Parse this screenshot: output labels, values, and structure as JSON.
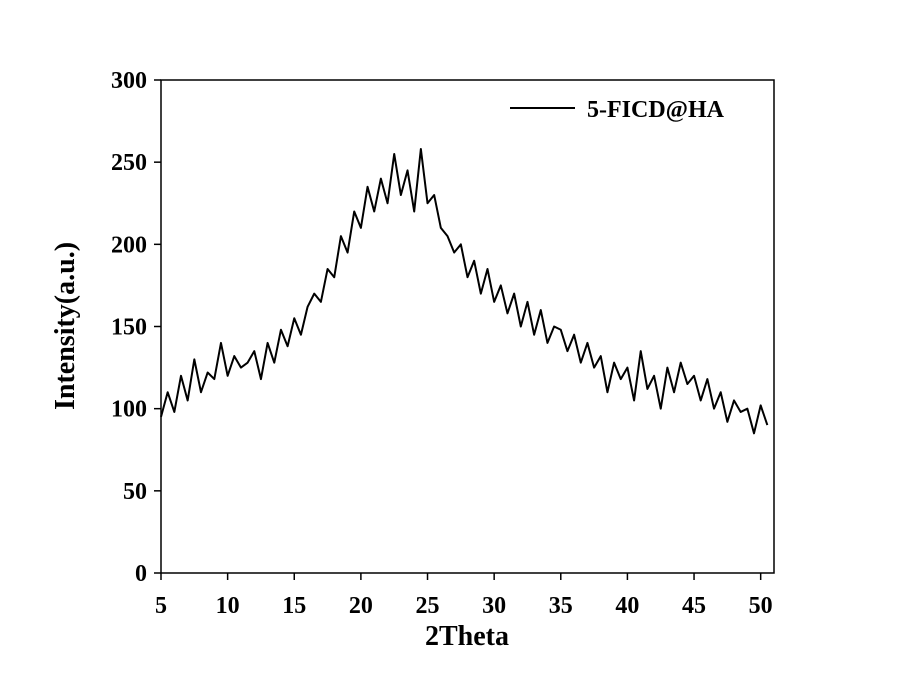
{
  "chart_data": {
    "type": "line",
    "x_label": "2Theta",
    "y_label": "Intensity(a.u.)",
    "x": [
      5,
      5.5,
      6,
      6.5,
      7,
      7.5,
      8,
      8.5,
      9,
      9.5,
      10,
      10.5,
      11,
      11.5,
      12,
      12.5,
      13,
      13.5,
      14,
      14.5,
      15,
      15.5,
      16,
      16.5,
      17,
      17.5,
      18,
      18.5,
      19,
      19.5,
      20,
      20.5,
      21,
      21.5,
      22,
      22.5,
      23,
      23.5,
      24,
      24.5,
      25,
      25.5,
      26,
      26.5,
      27,
      27.5,
      28,
      28.5,
      29,
      29.5,
      30,
      30.5,
      31,
      31.5,
      32,
      32.5,
      33,
      33.5,
      34,
      34.5,
      35,
      35.5,
      36,
      36.5,
      37,
      37.5,
      38,
      38.5,
      39,
      39.5,
      40,
      40.5,
      41,
      41.5,
      42,
      42.5,
      43,
      43.5,
      44,
      44.5,
      45,
      45.5,
      46,
      46.5,
      47,
      47.5,
      48,
      48.5,
      49,
      49.5,
      50,
      50.5
    ],
    "series": [
      {
        "name": "5-FICD@HA",
        "color": "#000000",
        "values": [
          95,
          110,
          98,
          120,
          105,
          130,
          110,
          122,
          118,
          140,
          120,
          132,
          125,
          128,
          135,
          118,
          140,
          128,
          148,
          138,
          155,
          145,
          162,
          170,
          165,
          185,
          180,
          205,
          195,
          220,
          210,
          235,
          220,
          240,
          225,
          255,
          230,
          245,
          220,
          258,
          225,
          230,
          210,
          205,
          195,
          200,
          180,
          190,
          170,
          185,
          165,
          175,
          158,
          170,
          150,
          165,
          145,
          160,
          140,
          150,
          148,
          135,
          145,
          128,
          140,
          125,
          132,
          110,
          128,
          118,
          125,
          105,
          135,
          112,
          120,
          100,
          125,
          110,
          128,
          115,
          120,
          105,
          118,
          100,
          110,
          92,
          105,
          98,
          100,
          85,
          102,
          90
        ]
      }
    ],
    "xlim": [
      5,
      51
    ],
    "ylim": [
      0,
      300
    ],
    "xticks": [
      5,
      10,
      15,
      20,
      25,
      30,
      35,
      40,
      45,
      50
    ],
    "yticks": [
      0,
      50,
      100,
      150,
      200,
      250,
      300
    ],
    "legend": "upper right"
  }
}
